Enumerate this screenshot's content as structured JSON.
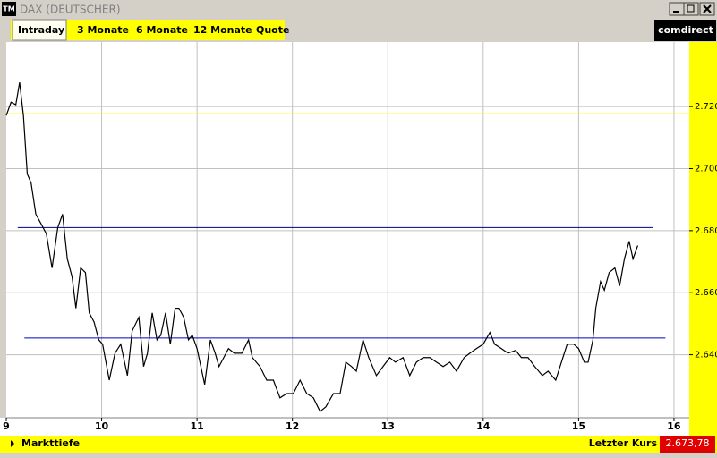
{
  "window": {
    "icon": "TM",
    "title": "DAX (DEUTSCHER)",
    "tabs": [
      "Intraday",
      "3 Monate",
      "6 Monate",
      "12 Monate",
      "Quote"
    ],
    "logo": "comdirect",
    "footer": {
      "link": "Markttiefe",
      "last_label": "Letzter Kurs",
      "last_price": "2.673,78"
    }
  },
  "chart_data": {
    "type": "line",
    "color": "#000000",
    "grid": true,
    "xlim": [
      9,
      16.16
    ],
    "xticks": [
      9,
      10,
      11,
      12,
      13,
      14,
      15,
      16
    ],
    "ylim": [
      2619.7,
      2740.8
    ],
    "yticks": [
      {
        "value": 2640,
        "label": "2.640"
      },
      {
        "value": 2660,
        "label": "2.660"
      },
      {
        "value": 2680,
        "label": "2.680"
      },
      {
        "value": 2700,
        "label": "2.700"
      },
      {
        "value": 2720,
        "label": "2.720"
      }
    ],
    "reference_lines": [
      {
        "value": 2717.7,
        "color": "#ffff00",
        "x": [
          9,
          16.16
        ]
      },
      {
        "value": 2681.0,
        "color": "#000080",
        "x": [
          9.12,
          15.78
        ]
      },
      {
        "value": 2645.4,
        "color": "#0000c0",
        "x": [
          9.19,
          15.91
        ]
      }
    ],
    "x": [
      9.0,
      9.05,
      9.1,
      9.14,
      9.18,
      9.22,
      9.26,
      9.31,
      9.36,
      9.42,
      9.48,
      9.54,
      9.59,
      9.64,
      9.69,
      9.73,
      9.78,
      9.83,
      9.87,
      9.92,
      9.97,
      10.01,
      10.08,
      10.14,
      10.2,
      10.27,
      10.32,
      10.39,
      10.44,
      10.48,
      10.53,
      10.58,
      10.62,
      10.67,
      10.72,
      10.77,
      10.81,
      10.86,
      10.91,
      10.95,
      11.0,
      11.08,
      11.14,
      11.19,
      11.23,
      11.28,
      11.33,
      11.39,
      11.47,
      11.54,
      11.58,
      11.66,
      11.73,
      11.8,
      11.87,
      11.94,
      12.01,
      12.08,
      12.15,
      12.22,
      12.29,
      12.35,
      12.43,
      12.5,
      12.56,
      12.62,
      12.67,
      12.74,
      12.8,
      12.88,
      12.95,
      13.02,
      13.08,
      13.16,
      13.23,
      13.3,
      13.37,
      13.44,
      13.51,
      13.58,
      13.65,
      13.72,
      13.8,
      13.86,
      13.93,
      14.0,
      14.07,
      14.12,
      14.19,
      14.26,
      14.34,
      14.4,
      14.47,
      14.54,
      14.62,
      14.68,
      14.76,
      14.82,
      14.88,
      14.95,
      15.0,
      15.06,
      15.1,
      15.15,
      15.18,
      15.23,
      15.27,
      15.32,
      15.38,
      15.43,
      15.48,
      15.53,
      15.57,
      15.62
    ],
    "values": [
      2717.1,
      2721.4,
      2720.6,
      2727.8,
      2717.1,
      2698.3,
      2695.4,
      2685.3,
      2682.5,
      2679.0,
      2668.0,
      2681.0,
      2685.3,
      2670.9,
      2665.1,
      2655.0,
      2668.0,
      2666.5,
      2653.5,
      2650.6,
      2644.8,
      2643.4,
      2631.8,
      2640.5,
      2643.4,
      2633.3,
      2647.7,
      2652.1,
      2636.2,
      2640.5,
      2653.5,
      2644.8,
      2646.3,
      2653.5,
      2643.4,
      2655.0,
      2655.0,
      2652.1,
      2644.8,
      2646.3,
      2642.0,
      2630.4,
      2644.8,
      2640.5,
      2636.2,
      2639.1,
      2642.0,
      2640.5,
      2640.5,
      2644.8,
      2639.1,
      2636.2,
      2631.8,
      2631.8,
      2626.1,
      2627.5,
      2627.5,
      2631.8,
      2627.5,
      2626.1,
      2621.7,
      2623.2,
      2627.5,
      2627.5,
      2637.6,
      2636.2,
      2634.7,
      2644.8,
      2639.1,
      2633.3,
      2636.2,
      2639.1,
      2637.6,
      2639.1,
      2633.3,
      2637.6,
      2639.1,
      2639.1,
      2637.6,
      2636.2,
      2637.6,
      2634.7,
      2639.1,
      2640.5,
      2642.0,
      2643.4,
      2647.2,
      2643.4,
      2642.0,
      2640.5,
      2641.4,
      2639.1,
      2639.1,
      2636.2,
      2633.3,
      2634.7,
      2631.8,
      2637.6,
      2643.4,
      2643.4,
      2642.0,
      2637.6,
      2637.6,
      2644.8,
      2655.0,
      2663.6,
      2660.8,
      2666.5,
      2668.0,
      2662.2,
      2670.9,
      2676.6,
      2670.9,
      2675.2
    ]
  }
}
